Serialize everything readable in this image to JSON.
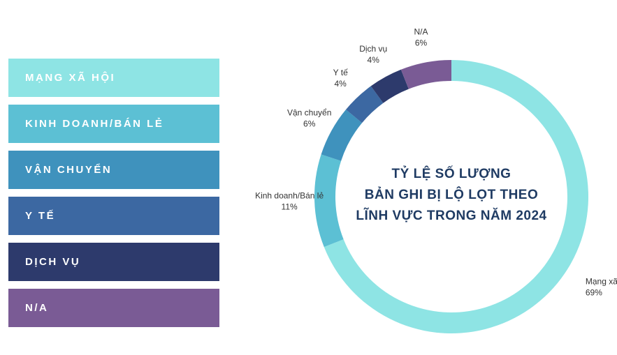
{
  "chart_data": {
    "type": "donut",
    "title": [
      "TỶ LỆ SỐ LƯỢNG",
      "BẢN GHI BỊ LỘ LỌT THEO",
      "LĨNH VỰC TRONG NĂM 2024"
    ],
    "categories": [
      "Mạng xã hội",
      "Kinh doanh/Bán lẻ",
      "Vận chuyển",
      "Y tế",
      "Dịch vụ",
      "N/A"
    ],
    "legend_labels": [
      "MẠNG XÃ HỘI",
      "KINH DOANH/BÁN LẺ",
      "VẬN CHUYỂN",
      "Y TẾ",
      "DỊCH VỤ",
      "N/A"
    ],
    "values": [
      69,
      11,
      6,
      4,
      4,
      6
    ],
    "value_labels": [
      "69%",
      "11%",
      "6%",
      "4%",
      "4%",
      "6%"
    ],
    "colors": [
      "#8ee4e4",
      "#5cc0d4",
      "#3f92bd",
      "#3c68a2",
      "#2d3a6c",
      "#7a5b95"
    ]
  }
}
